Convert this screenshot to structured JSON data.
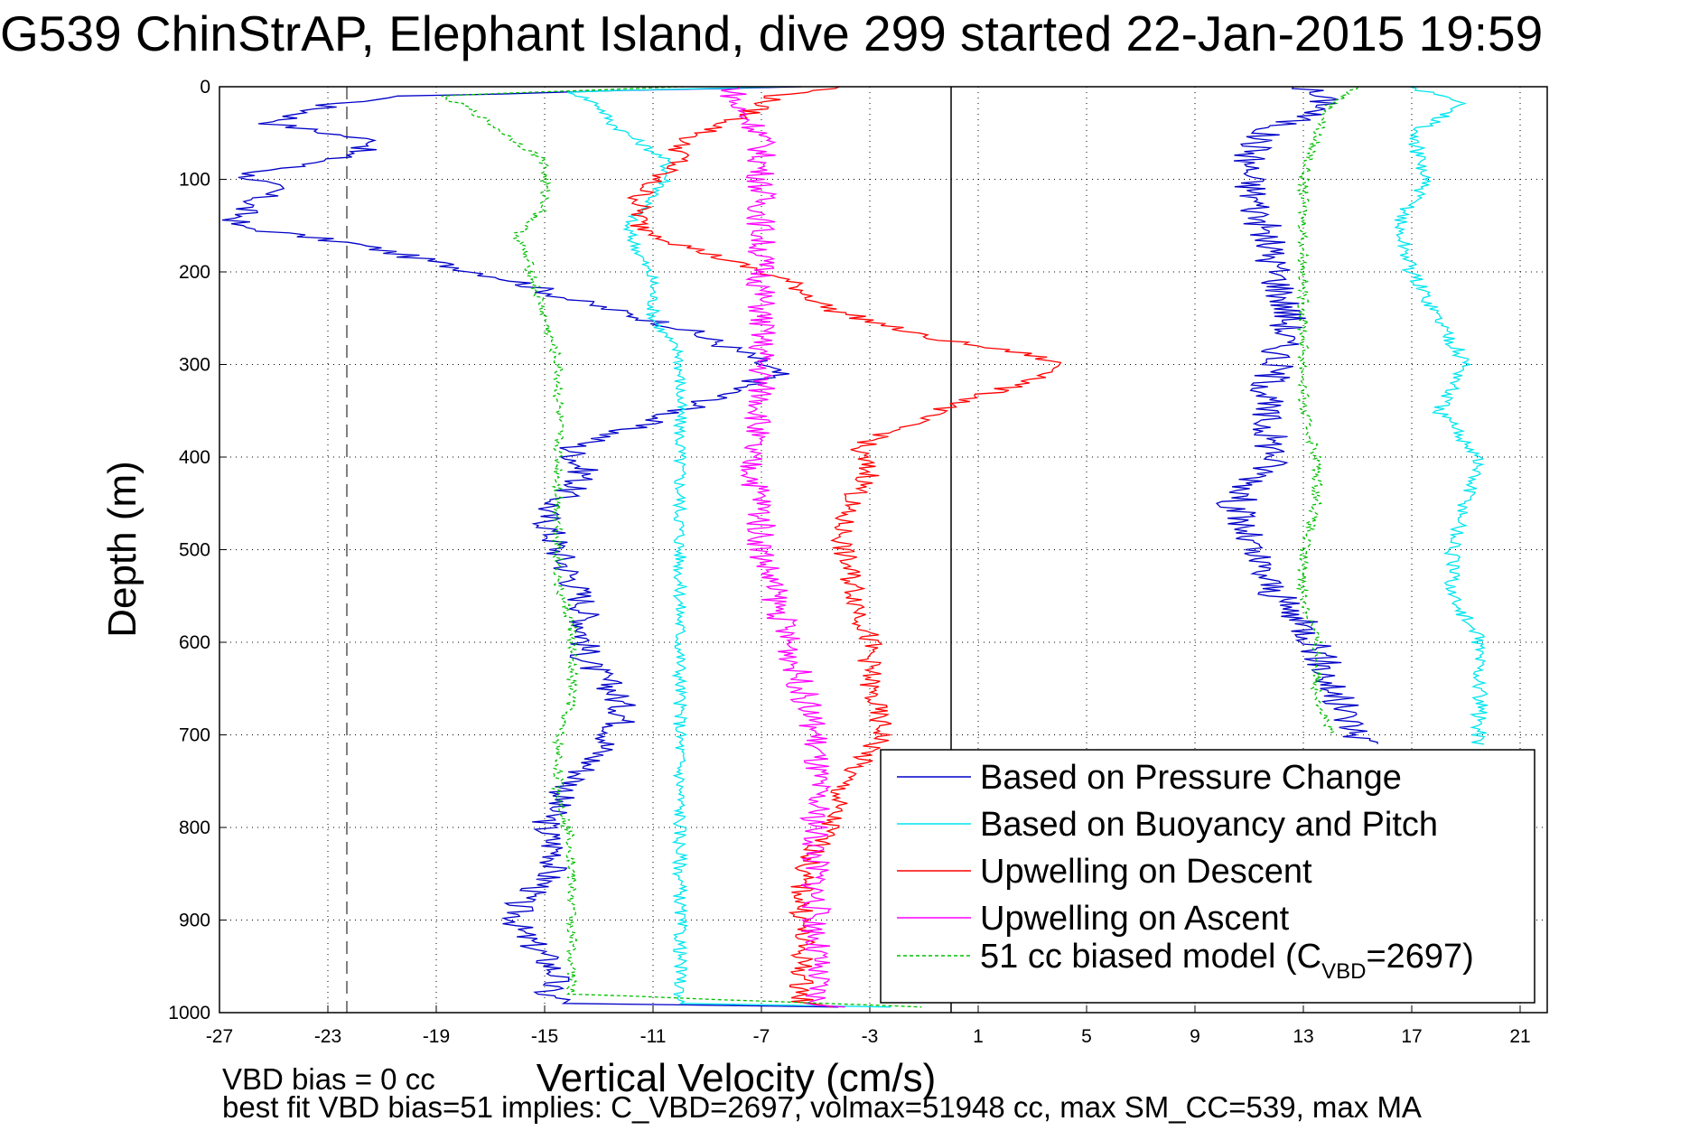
{
  "chart_data": {
    "type": "line",
    "title": "G539 ChinStrAP, Elephant Island, dive 299 started 22-Jan-2015 19:59",
    "xlabel": "Vertical Velocity (cm/s)",
    "ylabel": "Depth (m)",
    "xlim": [
      -27,
      22
    ],
    "ylim": [
      0,
      1000
    ],
    "y_reversed": true,
    "xticks": [
      -27,
      -23,
      -19,
      -15,
      -11,
      -7,
      -3,
      1,
      5,
      9,
      13,
      17,
      21
    ],
    "yticks": [
      0,
      100,
      200,
      300,
      400,
      500,
      600,
      700,
      800,
      900,
      1000
    ],
    "grid": true,
    "legend_position": "bottom-right",
    "reference_lines": [
      {
        "x": -22.3,
        "style": "dashed",
        "color": "#808080"
      },
      {
        "x": 0,
        "style": "solid",
        "color": "#000000"
      }
    ],
    "series": [
      {
        "name": "Based on Pressure Change",
        "color": "#0000c8",
        "style": "solid",
        "depth": [
          0,
          10,
          20,
          40,
          60,
          80,
          95,
          110,
          130,
          150,
          170,
          190,
          210,
          230,
          260,
          290,
          310,
          340,
          370,
          390,
          420,
          460,
          500,
          530,
          560,
          590,
          620,
          650,
          680,
          720,
          770,
          800,
          830,
          860,
          880,
          910,
          940,
          960,
          980,
          990,
          995
        ],
        "values": [
          -6,
          -20,
          -23,
          -25,
          -21,
          -23,
          -26,
          -25,
          -26,
          -26.5,
          -22,
          -19,
          -16,
          -14,
          -10,
          -7.5,
          -6.5,
          -9,
          -12,
          -14,
          -13.5,
          -15,
          -14.5,
          -14,
          -13.5,
          -13.5,
          -13.5,
          -12.5,
          -12,
          -13,
          -14.5,
          -15,
          -14.5,
          -15,
          -16,
          -16,
          -15,
          -14.5,
          -15,
          -14,
          -2
        ]
      },
      {
        "name": "Based on Buoyancy and Pitch",
        "color": "#00e5ee",
        "style": "solid",
        "depth": [
          0,
          5,
          20,
          40,
          60,
          80,
          100,
          120,
          150,
          180,
          210,
          250,
          290,
          330,
          360,
          400,
          440,
          500,
          560,
          600,
          640,
          700,
          760,
          820,
          880,
          940,
          990,
          995
        ],
        "values": [
          -6,
          -14,
          -13,
          -12.5,
          -11.5,
          -10.5,
          -10.5,
          -11,
          -12,
          -11.5,
          -11,
          -11,
          -10,
          -10,
          -10,
          -10,
          -10,
          -10,
          -10,
          -10,
          -10,
          -10,
          -10,
          -10,
          -10,
          -10,
          -10,
          0
        ]
      },
      {
        "name": "Upwelling on Descent",
        "color": "#ff0000",
        "style": "solid",
        "depth": [
          0,
          10,
          30,
          60,
          80,
          100,
          120,
          150,
          170,
          190,
          210,
          240,
          270,
          290,
          300,
          310,
          330,
          350,
          370,
          390,
          420,
          460,
          500,
          550,
          600,
          650,
          700,
          750,
          800,
          850,
          900,
          950,
          990,
          995
        ],
        "values": [
          -4,
          -6.5,
          -7.5,
          -10,
          -10,
          -11,
          -11.5,
          -11.5,
          -10,
          -8,
          -6,
          -4.5,
          -1,
          3,
          4,
          3.8,
          1.5,
          -0.5,
          -2,
          -3.5,
          -3,
          -4,
          -4,
          -3.5,
          -3,
          -3,
          -2.5,
          -4,
          -4.5,
          -5.5,
          -5.5,
          -5.5,
          -5.5,
          -4
        ]
      },
      {
        "name": "Upwelling on Ascent",
        "color": "#ff00ff",
        "style": "solid",
        "depth": [
          0,
          20,
          50,
          100,
          150,
          200,
          250,
          300,
          350,
          400,
          450,
          500,
          550,
          600,
          650,
          700,
          750,
          800,
          850,
          900,
          950,
          990,
          995
        ],
        "values": [
          -8,
          -8,
          -7,
          -7,
          -7,
          -7,
          -7,
          -7,
          -7,
          -7.5,
          -7,
          -7,
          -6.5,
          -6,
          -5.5,
          -5,
          -5,
          -5,
          -5,
          -5,
          -5,
          -5,
          -4
        ]
      },
      {
        "name": "51 cc biased model (C_VBD=2697)",
        "color": "#00c000",
        "style": "dashed",
        "depth": [
          0,
          10,
          20,
          40,
          60,
          80,
          100,
          130,
          160,
          200,
          250,
          300,
          340,
          380,
          420,
          460,
          500,
          540,
          580,
          620,
          660,
          700,
          760,
          820,
          880,
          940,
          980,
          995
        ],
        "values": [
          -10,
          -19,
          -18,
          -17,
          -16,
          -15,
          -15,
          -15,
          -16,
          -15.5,
          -15,
          -14.5,
          -14.5,
          -14.5,
          -14.5,
          -14.5,
          -14.5,
          -14.5,
          -14,
          -14,
          -14,
          -14.5,
          -14.5,
          -14,
          -14,
          -14,
          -14,
          0
        ]
      }
    ],
    "right_panel_series": [
      {
        "name": "Based on Pressure Change",
        "color": "#0000c8",
        "depth": [
          0,
          20,
          50,
          80,
          100,
          150,
          200,
          250,
          300,
          350,
          400,
          450,
          500,
          550,
          600,
          650,
          700,
          710
        ],
        "values": [
          13,
          14,
          11.5,
          11,
          11,
          11.5,
          12,
          12.5,
          12,
          11.5,
          12,
          10.5,
          11,
          12,
          13.5,
          14,
          15,
          15.5
        ]
      },
      {
        "name": "Based on Buoyancy and Pitch",
        "color": "#00e5ee",
        "depth": [
          0,
          20,
          50,
          100,
          150,
          200,
          250,
          300,
          350,
          400,
          450,
          500,
          550,
          600,
          650,
          700,
          710
        ],
        "values": [
          17,
          19,
          17,
          17.5,
          16.5,
          17,
          18,
          19,
          18,
          19.5,
          19,
          18.5,
          18.5,
          19.5,
          19.5,
          19.5,
          19.5
        ]
      },
      {
        "name": "51 cc biased model (C_VBD=2697)",
        "color": "#00c000",
        "depth": [
          0,
          20,
          50,
          100,
          150,
          200,
          250,
          300,
          350,
          400,
          450,
          500,
          550,
          600,
          650,
          700
        ],
        "values": [
          15,
          14,
          13.5,
          13,
          13,
          13,
          13,
          13,
          13,
          13.5,
          13.5,
          13,
          13,
          13.5,
          13.5,
          14
        ]
      }
    ],
    "legend": [
      {
        "label": "Based on Pressure Change",
        "color": "#0000c8",
        "style": "solid"
      },
      {
        "label": "Based on Buoyancy and Pitch",
        "color": "#00e5ee",
        "style": "solid"
      },
      {
        "label": "Upwelling on Descent",
        "color": "#ff0000",
        "style": "solid"
      },
      {
        "label": "Upwelling on Ascent",
        "color": "#ff00ff",
        "style": "solid"
      },
      {
        "label_main": "51 cc biased model (C",
        "label_sub": "VBD",
        "label_tail": "=2697)",
        "color": "#00c000",
        "style": "dashed"
      }
    ],
    "annotations": {
      "vbd_bias": "VBD bias = 0 cc",
      "best_fit": "best fit VBD bias=51 implies: C_VBD=2697, volmax=51948 cc, max SM_CC=539, max MA"
    }
  }
}
